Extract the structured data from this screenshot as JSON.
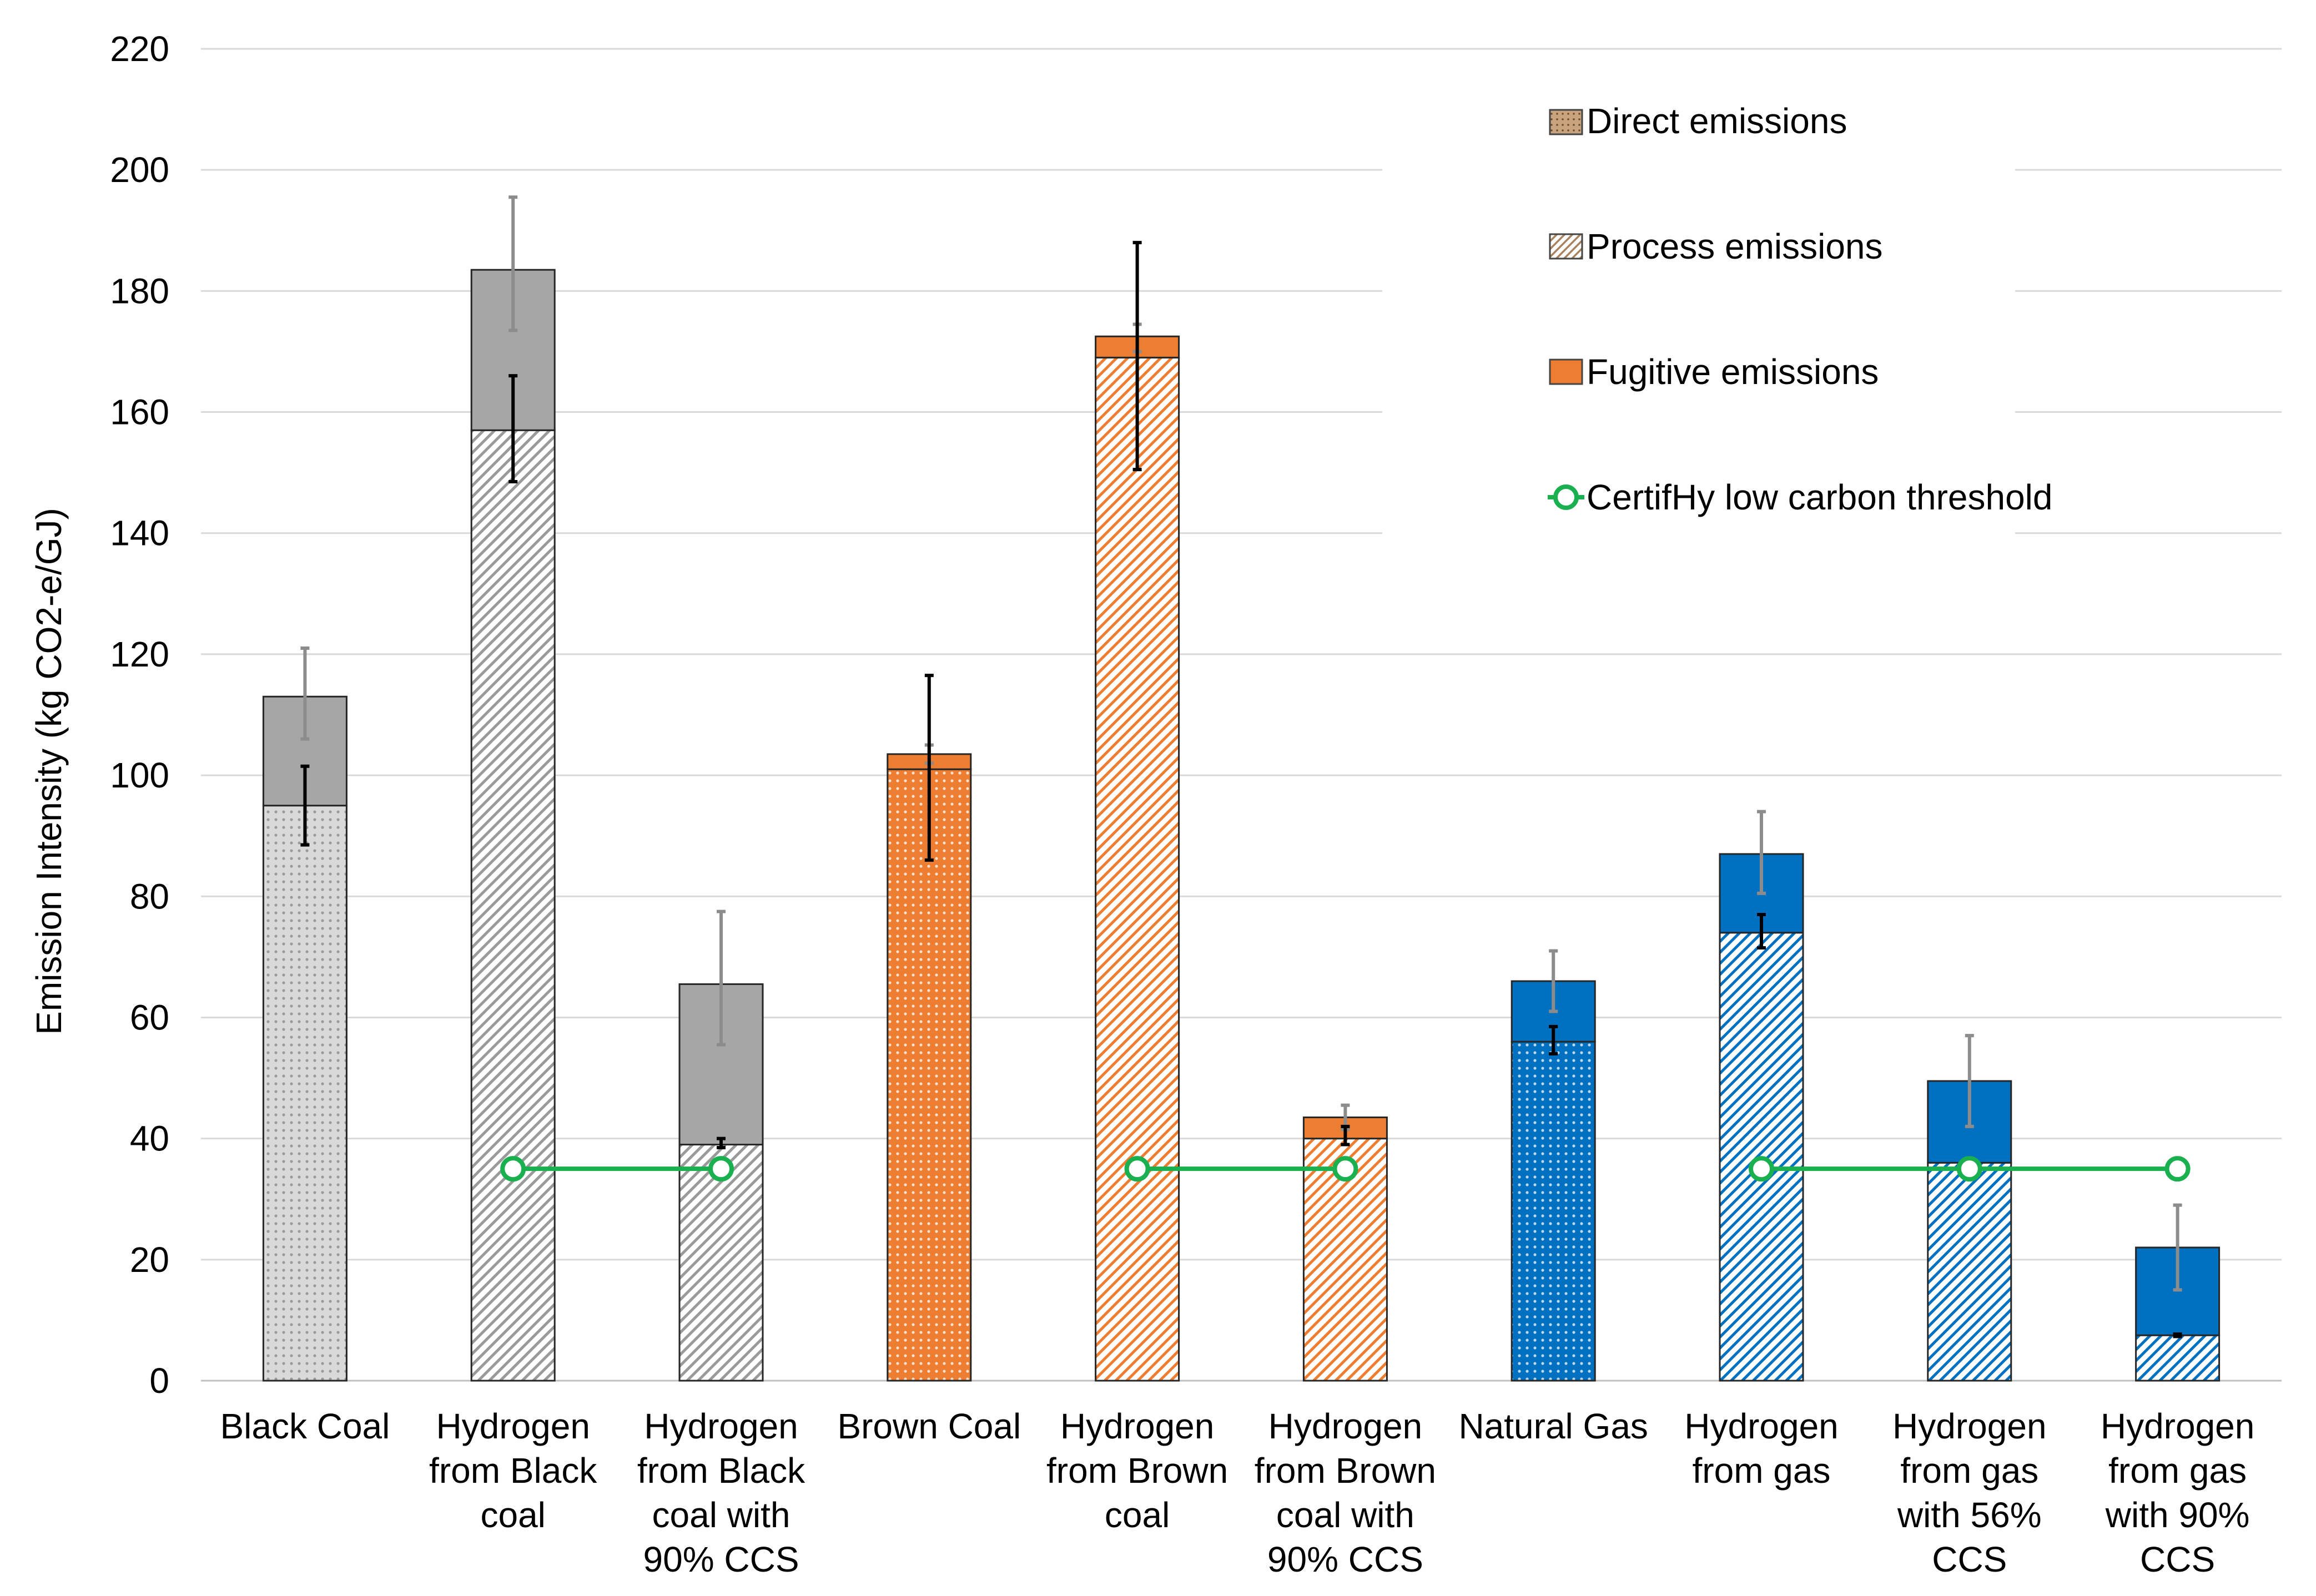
{
  "colors": {
    "gray_dark": "#a6a6a6",
    "gray_light": "#d9d9d9",
    "orange": "#ed7d31",
    "orange_light": "#f4b183",
    "blue": "#0070c0",
    "blue_light": "#9dc3e6",
    "threshold": "#1aaf4f",
    "err_gray": "#8c8c8c",
    "err_black": "#000000",
    "grid": "#d9d9d9"
  },
  "chart_data": {
    "type": "bar",
    "stacked": true,
    "title": "",
    "xlabel": "",
    "ylabel": "Emission Intensity (kg CO2-e/GJ)",
    "ylim": [
      0,
      220
    ],
    "ytick_step": 20,
    "grid": true,
    "legend_position": "top-right",
    "categories": [
      [
        "Black Coal"
      ],
      [
        "Hydrogen",
        "from Black",
        "coal"
      ],
      [
        "Hydrogen",
        "from Black",
        "coal with",
        "90% CCS"
      ],
      [
        "Brown Coal"
      ],
      [
        "Hydrogen",
        "from Brown",
        "coal"
      ],
      [
        "Hydrogen",
        "from Brown",
        "coal with",
        "90% CCS"
      ],
      [
        "Natural Gas"
      ],
      [
        "Hydrogen",
        "from gas"
      ],
      [
        "Hydrogen",
        "from gas",
        "with 56%",
        "CCS"
      ],
      [
        "Hydrogen",
        "from gas",
        "with 90%",
        "CCS"
      ]
    ],
    "fuel_group": [
      "coal",
      "coal",
      "coal",
      "brown",
      "brown",
      "brown",
      "gas",
      "gas",
      "gas",
      "gas"
    ],
    "base_pattern": [
      "dots",
      "hatch",
      "hatch",
      "dots",
      "hatch",
      "hatch",
      "dots",
      "hatch",
      "hatch",
      "hatch"
    ],
    "series": [
      {
        "name": "Direct emissions",
        "values": [
          95,
          157,
          39,
          101,
          169,
          40,
          56,
          74,
          36,
          7.5
        ]
      },
      {
        "name": "Process emissions",
        "values": [
          0,
          0,
          0,
          0,
          0,
          0,
          0,
          0,
          0,
          0
        ]
      },
      {
        "name": "Fugitive emissions",
        "values": [
          18,
          26.5,
          26.5,
          2.5,
          3.5,
          3.5,
          10,
          13,
          13.5,
          14.5
        ]
      }
    ],
    "error_bars_lower": [
      {
        "center": 95,
        "low": 88.5,
        "high": 101.5
      },
      {
        "center": 157,
        "low": 148.5,
        "high": 166
      },
      {
        "center": 39,
        "low": 38.5,
        "high": 40
      },
      {
        "center": 101,
        "low": 86,
        "high": 116.5
      },
      {
        "center": 169,
        "low": 150.5,
        "high": 188
      },
      {
        "center": 40,
        "low": 39,
        "high": 42
      },
      {
        "center": 56,
        "low": 54,
        "high": 58.5
      },
      {
        "center": 74,
        "low": 71.5,
        "high": 77
      },
      {
        "center": 36,
        "low": 35.5,
        "high": 36.5
      },
      {
        "center": 7.5,
        "low": 7.3,
        "high": 7.7
      }
    ],
    "error_bars_upper": [
      {
        "center": 113,
        "low": 106,
        "high": 121
      },
      {
        "center": 183.5,
        "low": 173.5,
        "high": 195.5
      },
      {
        "center": 65.5,
        "low": 55.5,
        "high": 77.5
      },
      {
        "center": 103.5,
        "low": 102,
        "high": 105
      },
      {
        "center": 172.5,
        "low": 170,
        "high": 174.5
      },
      {
        "center": 43.5,
        "low": 41.5,
        "high": 45.5
      },
      {
        "center": 66,
        "low": 61,
        "high": 71
      },
      {
        "center": 87,
        "low": 80.5,
        "high": 94
      },
      {
        "center": 49.5,
        "low": 42,
        "high": 57
      },
      {
        "center": 22,
        "low": 15,
        "high": 29
      }
    ],
    "threshold": {
      "name": "CertifHy low carbon threshold",
      "value": 35,
      "segments": [
        [
          1,
          2
        ],
        [
          4,
          5
        ],
        [
          7,
          9
        ]
      ]
    }
  }
}
